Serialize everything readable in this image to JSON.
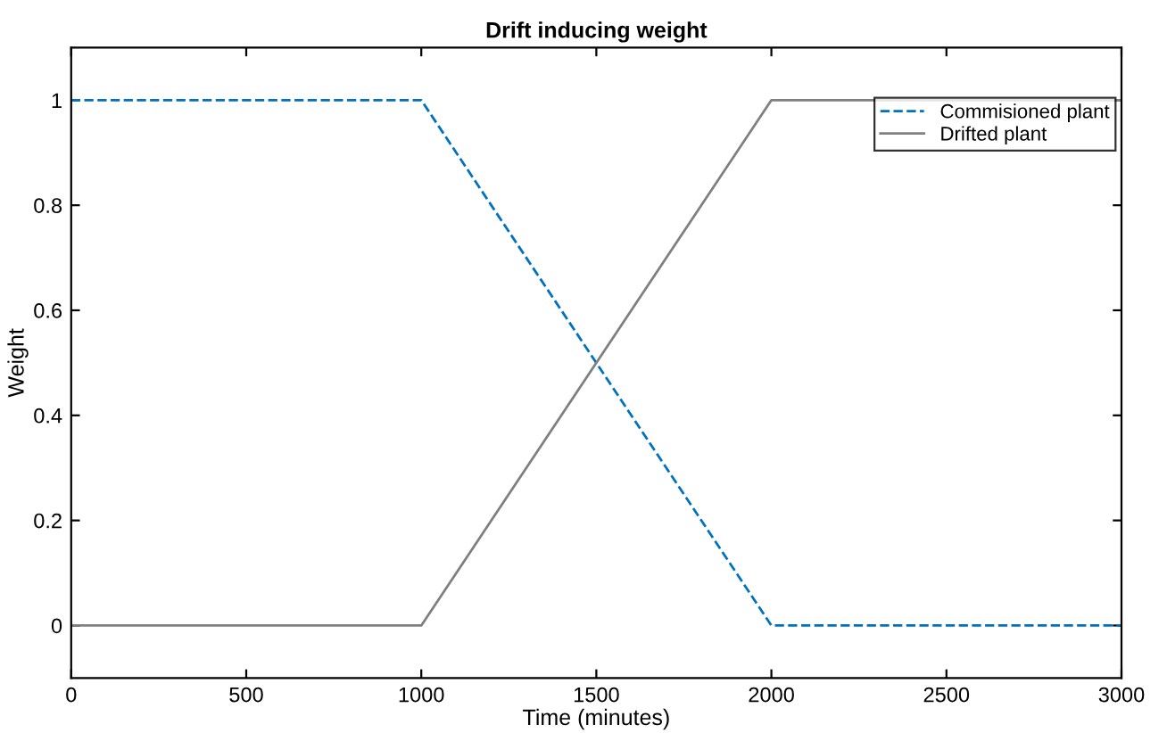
{
  "chart_data": {
    "type": "line",
    "title": "Drift inducing weight",
    "xlabel": "Time (minutes)",
    "ylabel": "Weight",
    "x": [
      0,
      1000,
      2000,
      3000
    ],
    "series": [
      {
        "name": "Commisioned plant",
        "color": "#0072bd",
        "values": [
          1,
          1,
          0,
          0
        ],
        "line_style": "dashed"
      },
      {
        "name": "Drifted plant",
        "color": "#808080",
        "values": [
          0,
          0,
          1,
          1
        ],
        "line_style": "solid"
      }
    ],
    "xlim": [
      0,
      3000
    ],
    "xticks": [
      0,
      500,
      1000,
      1500,
      2000,
      2500,
      3000
    ],
    "ylim": [
      -0.1,
      1.1
    ],
    "yticks": [
      0,
      0.2,
      0.4,
      0.6,
      0.8,
      1
    ],
    "grid": false,
    "legend": "top right",
    "marker": "none"
  }
}
